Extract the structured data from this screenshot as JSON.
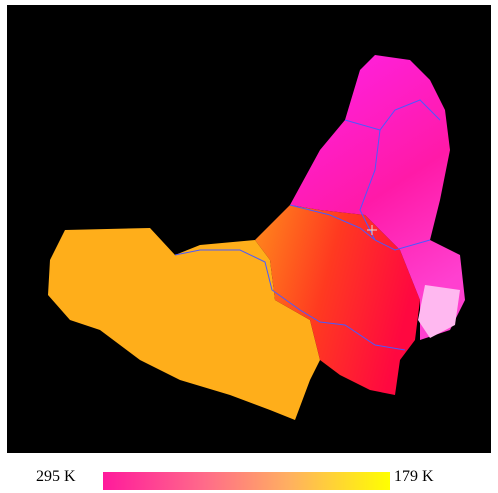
{
  "colorbar": {
    "min_label": "295 K",
    "max_label": "179 K"
  }
}
